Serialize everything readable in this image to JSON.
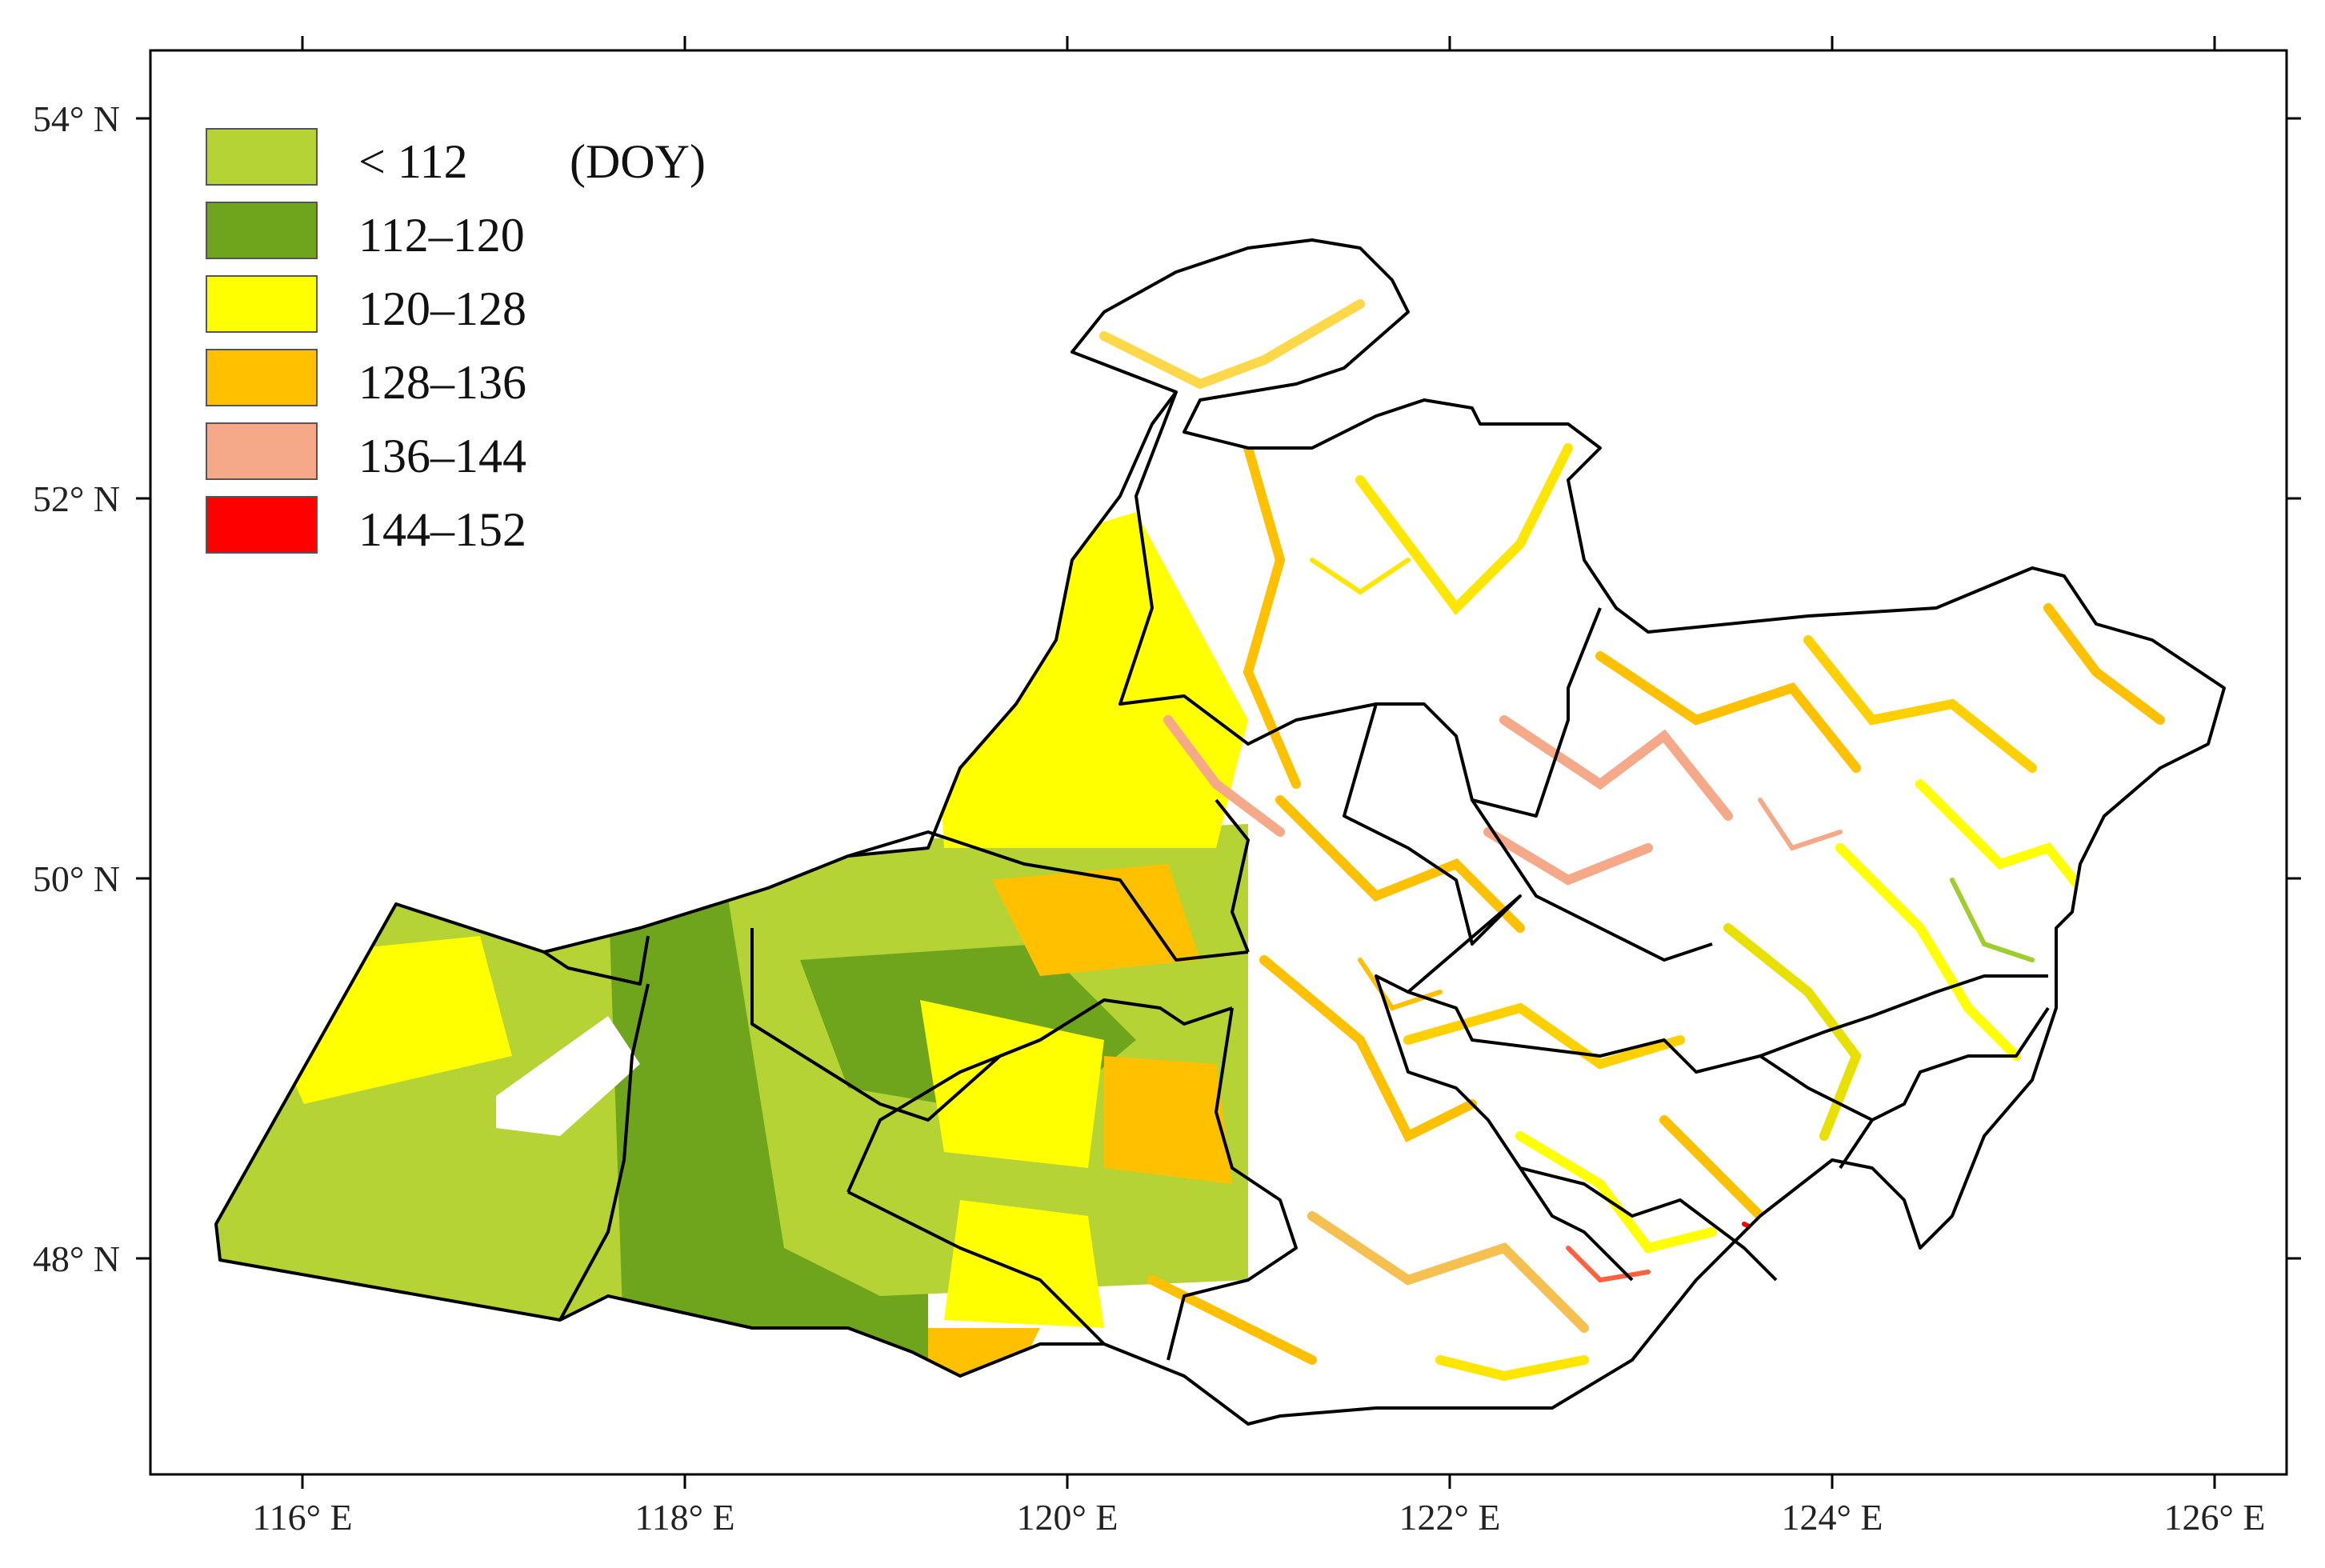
{
  "map": {
    "unit_label": "(DOY)",
    "x_axis": {
      "range": [
        115.2,
        126.4
      ],
      "ticks": [
        {
          "value": 116,
          "label": "116° E"
        },
        {
          "value": 118,
          "label": "118° E"
        },
        {
          "value": 120,
          "label": "120° E"
        },
        {
          "value": 122,
          "label": "122° E"
        },
        {
          "value": 124,
          "label": "124° E"
        },
        {
          "value": 126,
          "label": "126° E"
        }
      ]
    },
    "y_axis": {
      "range": [
        47.0,
        54.35
      ],
      "ticks": [
        {
          "value": 54,
          "label": "54° N"
        },
        {
          "value": 52,
          "label": "52° N"
        },
        {
          "value": 50,
          "label": "50° N"
        },
        {
          "value": 48,
          "label": "48° N"
        }
      ]
    },
    "legend": [
      {
        "label": "< 112",
        "color": "#b5d334"
      },
      {
        "label": "112–120",
        "color": "#6fa51c"
      },
      {
        "label": "120–128",
        "color": "#ffff00"
      },
      {
        "label": "128–136",
        "color": "#ffc000"
      },
      {
        "label": "136–144",
        "color": "#f5a988"
      },
      {
        "label": "144–152",
        "color": "#ff0000"
      }
    ]
  }
}
